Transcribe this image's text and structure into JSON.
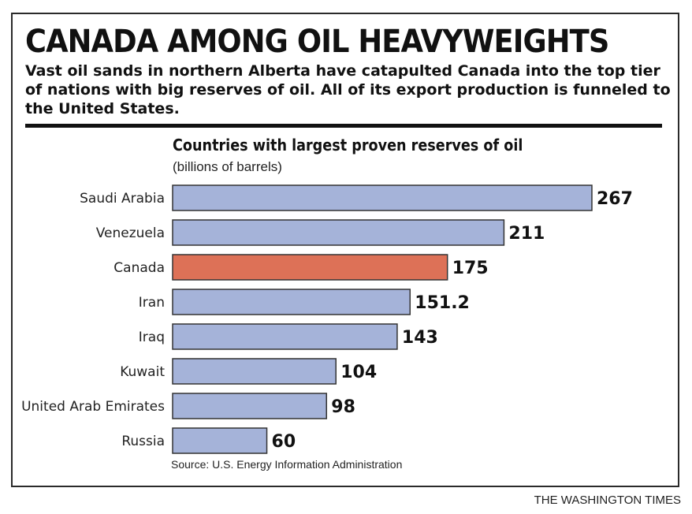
{
  "headline": "CANADA AMONG OIL HEAVYWEIGHTS",
  "deck": "Vast oil sands in northern Alberta have catapulted Canada into the top tier of nations with big reserves of oil. All of its export production is funneled to the United States.",
  "source": "Source: U.S. Energy Information Administration",
  "credit": "THE WASHINGTON TIMES",
  "colors": {
    "bar": "#a5b3d9",
    "highlight": "#dd7157",
    "bar_stroke": "#333333"
  },
  "chart_data": {
    "type": "bar",
    "orientation": "horizontal",
    "title": "Countries with largest proven reserves of oil",
    "subtitle": "(billions of barrels)",
    "categories": [
      "Saudi Arabia",
      "Venezuela",
      "Canada",
      "Iran",
      "Iraq",
      "Kuwait",
      "United Arab Emirates",
      "Russia"
    ],
    "values": [
      267,
      211,
      175,
      151.2,
      143,
      104,
      98,
      60
    ],
    "value_labels": [
      "267",
      "211",
      "175",
      "151.2",
      "143",
      "104",
      "98",
      "60"
    ],
    "highlight": "Canada",
    "grid": false,
    "legend": "none"
  }
}
